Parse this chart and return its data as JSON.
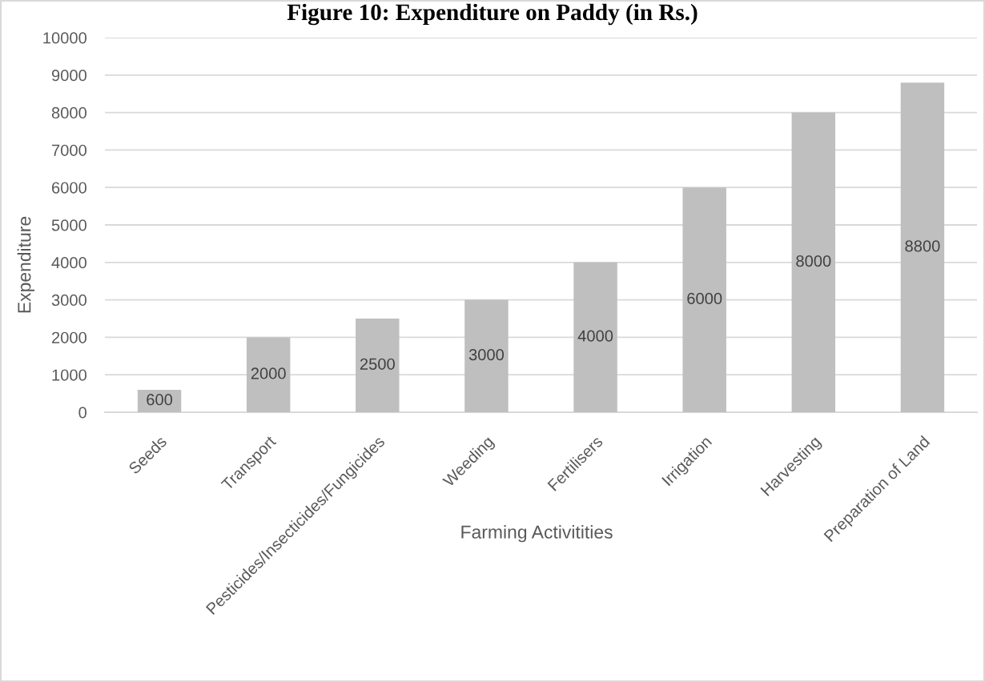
{
  "chart_data": {
    "type": "bar",
    "title": "Figure 10: Expenditure on Paddy (in Rs.)",
    "xlabel": "Farming Activitities",
    "ylabel": "Expenditure",
    "categories": [
      "Seeds",
      "Transport",
      "Pesticides/Insecticides/Fungicides",
      "Weeding",
      "Fertilisers",
      "Irrigation",
      "Harvesting",
      "Preparation of Land"
    ],
    "values": [
      600,
      2000,
      2500,
      3000,
      4000,
      6000,
      8000,
      8800
    ],
    "color": "#bfbfbf",
    "ylim": [
      0,
      10000
    ],
    "yticks": [
      0,
      1000,
      2000,
      3000,
      4000,
      5000,
      6000,
      7000,
      8000,
      9000,
      10000
    ],
    "grid": "y",
    "data_labels": true
  }
}
